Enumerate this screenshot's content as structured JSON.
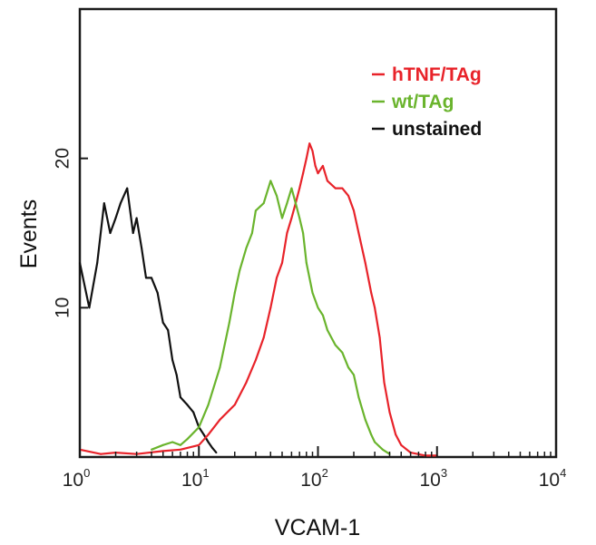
{
  "chart_data": {
    "type": "line",
    "xlabel": "VCAM-1",
    "ylabel": "Events",
    "x_scale": "log",
    "xlim": [
      1,
      10000
    ],
    "ylim": [
      0,
      30
    ],
    "x_ticks": [
      {
        "base": "10",
        "exp": "0",
        "value": 1
      },
      {
        "base": "10",
        "exp": "1",
        "value": 10
      },
      {
        "base": "10",
        "exp": "2",
        "value": 100
      },
      {
        "base": "10",
        "exp": "3",
        "value": 1000
      },
      {
        "base": "10",
        "exp": "4",
        "value": 10000
      }
    ],
    "y_ticks": [
      {
        "label": "10",
        "value": 10
      },
      {
        "label": "20",
        "value": 20
      }
    ],
    "grid": false,
    "legend_position": "top-right",
    "series": [
      {
        "name": "hTNF/TAg",
        "color": "#e8232a",
        "x": [
          1,
          1.5,
          2,
          3,
          5,
          7,
          10,
          12,
          15,
          20,
          25,
          30,
          35,
          40,
          45,
          50,
          55,
          60,
          65,
          70,
          75,
          80,
          85,
          90,
          95,
          100,
          110,
          120,
          140,
          160,
          180,
          200,
          220,
          250,
          280,
          300,
          330,
          360,
          400,
          450,
          500,
          600,
          800,
          1000
        ],
        "y": [
          0.5,
          0.2,
          0.3,
          0.2,
          0.4,
          0.5,
          0.8,
          1.5,
          2.5,
          3.5,
          5,
          6.5,
          8,
          10,
          12,
          13,
          15,
          16,
          17,
          18,
          19,
          20,
          21,
          20.5,
          19.5,
          19,
          19.5,
          18.5,
          18,
          18,
          17.5,
          16.5,
          15,
          13,
          11,
          10,
          8,
          5,
          3,
          1.5,
          0.8,
          0.3,
          0.1,
          0.1
        ]
      },
      {
        "name": "wt/TAg",
        "color": "#6ab42d",
        "x": [
          4,
          5,
          6,
          7,
          8,
          10,
          12,
          15,
          18,
          20,
          22,
          25,
          28,
          30,
          35,
          40,
          45,
          50,
          55,
          60,
          65,
          70,
          75,
          80,
          90,
          100,
          110,
          120,
          140,
          160,
          180,
          200,
          220,
          250,
          280,
          300,
          350,
          400
        ],
        "y": [
          0.5,
          0.8,
          1,
          0.8,
          1.2,
          2,
          3.5,
          6,
          9,
          11,
          12.5,
          14,
          15,
          16.5,
          17,
          18.5,
          17.5,
          16,
          17,
          18,
          17,
          16,
          15,
          13,
          11,
          10,
          9.5,
          8.5,
          7.5,
          7,
          6,
          5.5,
          4,
          2.5,
          1.5,
          1,
          0.5,
          0.2
        ]
      },
      {
        "name": "unstained",
        "color": "#111111",
        "x": [
          1,
          1.2,
          1.4,
          1.6,
          1.8,
          2,
          2.2,
          2.5,
          2.8,
          3,
          3.3,
          3.6,
          4,
          4.5,
          5,
          5.5,
          6,
          6.5,
          7,
          8,
          9,
          10,
          11,
          12,
          13,
          14
        ],
        "y": [
          13,
          10,
          13,
          17,
          15,
          16,
          17,
          18,
          15,
          16,
          14,
          12,
          12,
          11,
          9,
          8.5,
          6.5,
          5.5,
          4,
          3.5,
          3,
          2,
          1.5,
          1,
          0.6,
          0.3
        ]
      }
    ]
  }
}
